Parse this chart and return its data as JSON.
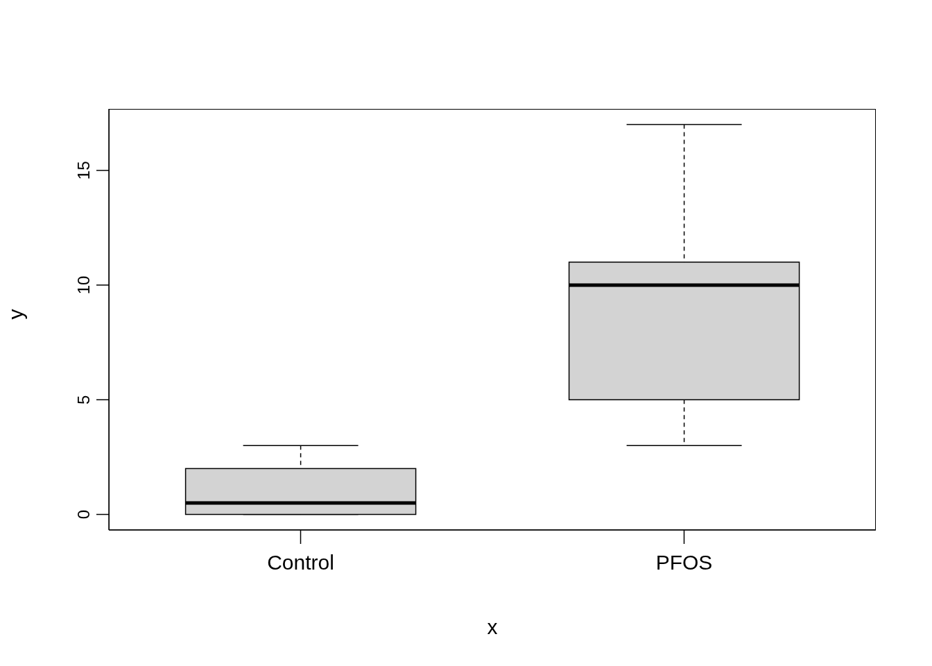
{
  "chart_data": {
    "type": "box",
    "xlabel": "x",
    "ylabel": "y",
    "categories": [
      "Control",
      "PFOS"
    ],
    "boxes": [
      {
        "low": 0,
        "q1": 0,
        "median": 0.5,
        "q3": 2,
        "high": 3
      },
      {
        "low": 3,
        "q1": 5,
        "median": 10,
        "q3": 11,
        "high": 17
      }
    ],
    "color": "#d3d3d3",
    "ylim": [
      -0.68,
      17.68
    ],
    "yticks": [
      0,
      5,
      10,
      15
    ]
  }
}
